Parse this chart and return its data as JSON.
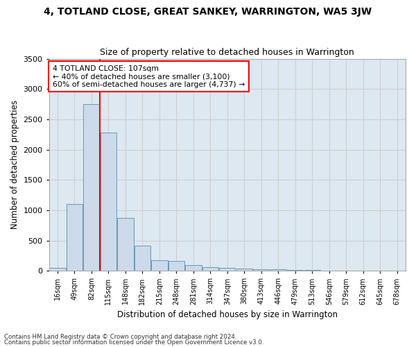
{
  "title": "4, TOTLAND CLOSE, GREAT SANKEY, WARRINGTON, WA5 3JW",
  "subtitle": "Size of property relative to detached houses in Warrington",
  "xlabel": "Distribution of detached houses by size in Warrington",
  "ylabel": "Number of detached properties",
  "categories": [
    "16sqm",
    "49sqm",
    "82sqm",
    "115sqm",
    "148sqm",
    "182sqm",
    "215sqm",
    "248sqm",
    "281sqm",
    "314sqm",
    "347sqm",
    "380sqm",
    "413sqm",
    "446sqm",
    "479sqm",
    "513sqm",
    "546sqm",
    "579sqm",
    "612sqm",
    "645sqm",
    "678sqm"
  ],
  "values": [
    50,
    1100,
    2750,
    2280,
    870,
    420,
    170,
    165,
    90,
    60,
    50,
    40,
    30,
    25,
    15,
    10,
    8,
    5,
    3,
    2,
    2
  ],
  "bar_color": "#ccdaea",
  "bar_edge_color": "#6699bb",
  "bar_edge_width": 0.7,
  "annotation_title": "4 TOTLAND CLOSE: 107sqm",
  "annotation_line1": "← 40% of detached houses are smaller (3,100)",
  "annotation_line2": "60% of semi-detached houses are larger (4,737) →",
  "ylim": [
    0,
    3500
  ],
  "yticks": [
    0,
    500,
    1000,
    1500,
    2000,
    2500,
    3000,
    3500
  ],
  "grid_color": "#cccccc",
  "plot_bg_color": "#dde8f0",
  "fig_bg_color": "#ffffff",
  "footnote1": "Contains HM Land Registry data © Crown copyright and database right 2024.",
  "footnote2": "Contains public sector information licensed under the Open Government Licence v3.0."
}
